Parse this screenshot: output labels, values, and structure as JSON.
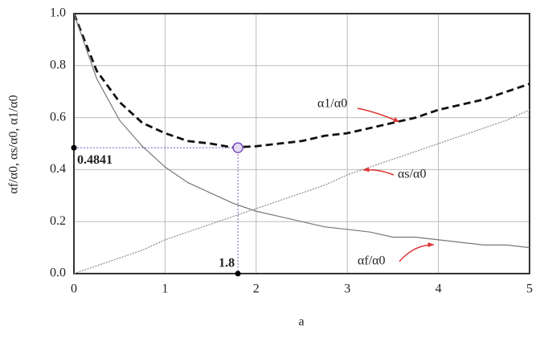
{
  "chart_data": {
    "type": "line",
    "x_label": "a",
    "y_label": "αf/α0, αs/α0, α1/α0",
    "x": [
      0,
      0.25,
      0.5,
      0.75,
      1,
      1.25,
      1.5,
      1.75,
      2,
      2.25,
      2.5,
      2.75,
      3,
      3.25,
      3.5,
      3.75,
      4,
      4.25,
      4.5,
      4.75,
      5
    ],
    "series": [
      {
        "name": "α1/α0",
        "color": "#111111",
        "dash": "dashed",
        "values": [
          1,
          0.78,
          0.66,
          0.58,
          0.54,
          0.51,
          0.5,
          0.485,
          0.49,
          0.5,
          0.51,
          0.53,
          0.54,
          0.56,
          0.58,
          0.6,
          0.63,
          0.65,
          0.67,
          0.7,
          0.73
        ]
      },
      {
        "name": "αs/α0",
        "color": "#888888",
        "dash": "dotted",
        "values": [
          0,
          0.03,
          0.06,
          0.09,
          0.13,
          0.16,
          0.19,
          0.22,
          0.25,
          0.28,
          0.31,
          0.34,
          0.38,
          0.41,
          0.44,
          0.47,
          0.5,
          0.53,
          0.56,
          0.59,
          0.63
        ]
      },
      {
        "name": "αf/α0",
        "color": "#777777",
        "dash": "solid",
        "values": [
          1,
          0.75,
          0.59,
          0.49,
          0.41,
          0.35,
          0.31,
          0.27,
          0.24,
          0.22,
          0.2,
          0.18,
          0.17,
          0.16,
          0.14,
          0.14,
          0.13,
          0.12,
          0.11,
          0.11,
          0.1
        ]
      }
    ],
    "highlight": {
      "x": 1.8,
      "y": 0.4841,
      "color": "#7b4fc0"
    },
    "xlim": [
      0,
      5
    ],
    "ylim": [
      0,
      1
    ],
    "xticks": [
      0,
      1,
      2,
      3,
      4,
      5
    ],
    "yticks": [
      {
        "value": 0,
        "label": "0.0"
      },
      {
        "value": 0.2,
        "label": "0.2"
      },
      {
        "value": 0.4,
        "label": "0.4"
      },
      {
        "value": 0.6,
        "label": "0.6"
      },
      {
        "value": 0.8,
        "label": "0.8"
      },
      {
        "value": 1,
        "label": "1.0"
      }
    ],
    "grid": true
  }
}
